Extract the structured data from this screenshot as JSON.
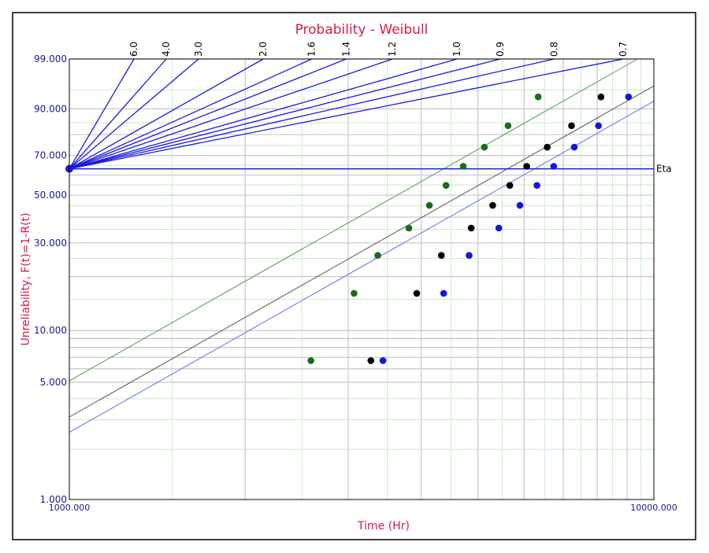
{
  "chart_data": {
    "type": "scatter",
    "title": "Probability - Weibull",
    "xlabel": "Time (Hr)",
    "ylabel": "Unreliability, F(t)=1-R(t)",
    "x_scale": "log",
    "y_scale": "weibull-probability",
    "xlim": [
      1000,
      10000
    ],
    "ylim": [
      1,
      99
    ],
    "x_tick_labels": [
      {
        "value": 1000,
        "label": "1000.000"
      },
      {
        "value": 10000,
        "label": "10000.000"
      }
    ],
    "y_tick_labels": [
      {
        "value": 1,
        "label": "1.000"
      },
      {
        "value": 5,
        "label": "5.000"
      },
      {
        "value": 10,
        "label": "10.000"
      },
      {
        "value": 30,
        "label": "30.000"
      },
      {
        "value": 50,
        "label": "50.000"
      },
      {
        "value": 70,
        "label": "70.000"
      },
      {
        "value": 90,
        "label": "90.000"
      },
      {
        "value": 99,
        "label": "99.000"
      }
    ],
    "beta_scale": {
      "values": [
        6.0,
        4.0,
        3.0,
        2.0,
        1.6,
        1.4,
        1.2,
        1.0,
        0.9,
        0.8,
        0.7
      ],
      "labels": [
        "6.0",
        "4.0",
        "3.0",
        "2.0",
        "1.6",
        "1.4",
        "1.2",
        "1.0",
        "0.9",
        "0.8",
        "0.7"
      ],
      "pivot_unreliability": 63.2
    },
    "eta_label": "Eta",
    "grid": true,
    "series": [
      {
        "color": "#1a6b1a",
        "line_color": "#4f9a4f",
        "fit": {
          "beta": 2.0,
          "eta": 4370
        },
        "points": [
          {
            "x": 2590,
            "y": 6.7
          },
          {
            "x": 3070,
            "y": 16.2
          },
          {
            "x": 3370,
            "y": 25.9
          },
          {
            "x": 3810,
            "y": 35.5
          },
          {
            "x": 4130,
            "y": 45.2
          },
          {
            "x": 4410,
            "y": 54.8
          },
          {
            "x": 4720,
            "y": 64.5
          },
          {
            "x": 5130,
            "y": 74.1
          },
          {
            "x": 5630,
            "y": 83.8
          },
          {
            "x": 6340,
            "y": 93.4
          }
        ]
      },
      {
        "color": "#000000",
        "line_color": "#555555",
        "fit": {
          "beta": 2.0,
          "eta": 5620
        },
        "points": [
          {
            "x": 3280,
            "y": 6.7
          },
          {
            "x": 3930,
            "y": 16.2
          },
          {
            "x": 4330,
            "y": 25.9
          },
          {
            "x": 4870,
            "y": 35.5
          },
          {
            "x": 5300,
            "y": 45.2
          },
          {
            "x": 5670,
            "y": 54.8
          },
          {
            "x": 6060,
            "y": 64.5
          },
          {
            "x": 6570,
            "y": 74.1
          },
          {
            "x": 7230,
            "y": 83.8
          },
          {
            "x": 8120,
            "y": 93.4
          }
        ]
      },
      {
        "color": "#1515e0",
        "line_color": "#6a6ae8",
        "fit": {
          "beta": 2.0,
          "eta": 6250
        },
        "points": [
          {
            "x": 3440,
            "y": 6.7
          },
          {
            "x": 4370,
            "y": 16.2
          },
          {
            "x": 4830,
            "y": 25.9
          },
          {
            "x": 5430,
            "y": 35.5
          },
          {
            "x": 5900,
            "y": 45.2
          },
          {
            "x": 6310,
            "y": 54.8
          },
          {
            "x": 6740,
            "y": 64.5
          },
          {
            "x": 7310,
            "y": 74.1
          },
          {
            "x": 8040,
            "y": 83.8
          },
          {
            "x": 9050,
            "y": 93.4
          }
        ]
      }
    ],
    "colors": {
      "title": "#d81b4a",
      "ticks": "#1a1a8c",
      "beta_lines": "#1a1ae0"
    }
  }
}
